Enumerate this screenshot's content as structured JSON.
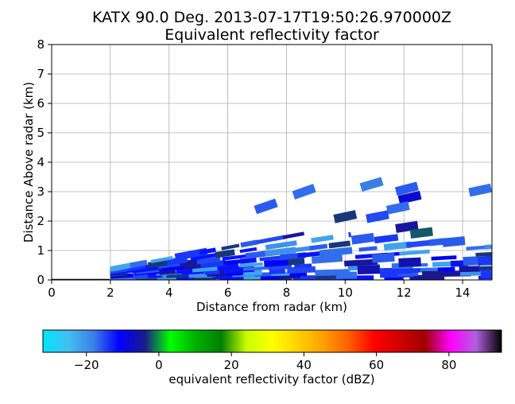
{
  "chart_data": {
    "type": "heatmap",
    "title_line1": "KATX 90.0 Deg. 2013-07-17T19:50:26.970000Z",
    "title_line2": "Equivalent reflectivity factor",
    "xlabel": "Distance from radar (km)",
    "ylabel": "Distance Above radar  (km)",
    "xlim": [
      0,
      15
    ],
    "ylim": [
      0,
      8
    ],
    "x_ticks": [
      "0",
      "2",
      "4",
      "6",
      "8",
      "10",
      "12",
      "14"
    ],
    "y_ticks": [
      "0",
      "1",
      "2",
      "3",
      "4",
      "5",
      "6",
      "7",
      "8"
    ],
    "grid": true,
    "colorbar": {
      "label": "equivalent reflectivity factor (dBZ)",
      "range": [
        -32,
        94.5
      ],
      "ticks": [
        "−20",
        "0",
        "20",
        "40",
        "60",
        "80"
      ],
      "tick_values": [
        -20,
        0,
        20,
        40,
        60,
        80
      ],
      "colors": [
        "#00e5ff",
        "#44bff0",
        "#3a7ee8",
        "#0000ff",
        "#1a1a8c",
        "#00ff00",
        "#00b000",
        "#008000",
        "#c8ff00",
        "#ffff00",
        "#ffd200",
        "#ffa000",
        "#ff6000",
        "#ff0000",
        "#d00000",
        "#a00000",
        "#ff00ff",
        "#b060e0",
        "#000000"
      ]
    },
    "segments": [
      {
        "r": 14.6,
        "z": 3.05,
        "dbz": -17
      },
      {
        "r": 10.9,
        "z": 3.25,
        "dbz": -18
      },
      {
        "r": 12.1,
        "z": 3.1,
        "dbz": -16
      },
      {
        "r": 12.2,
        "z": 2.8,
        "dbz": -8
      },
      {
        "r": 8.6,
        "z": 3.0,
        "dbz": -17
      },
      {
        "r": 7.3,
        "z": 2.5,
        "dbz": -16
      },
      {
        "r": 11.8,
        "z": 2.45,
        "dbz": -17
      },
      {
        "r": 11.1,
        "z": 2.15,
        "dbz": -15
      },
      {
        "r": 10.0,
        "z": 2.15,
        "dbz": -3
      },
      {
        "r": 12.1,
        "z": 1.8,
        "dbz": -5
      },
      {
        "r": 12.6,
        "z": 1.6,
        "dbz": -2
      },
      {
        "r": 10.6,
        "z": 1.4,
        "dbz": -16
      },
      {
        "r": 13.7,
        "z": 1.3,
        "dbz": -16
      },
      {
        "r": 14.4,
        "z": 0.65,
        "dbz": -16
      },
      {
        "r": 14.9,
        "z": 0.65,
        "dbz": -14
      },
      {
        "r": 15.0,
        "z": 0.2,
        "dbz": -14
      },
      {
        "r": 13.0,
        "z": 0.15,
        "dbz": -4
      },
      {
        "r": 12.2,
        "z": 0.6,
        "dbz": -6
      },
      {
        "r": 11.3,
        "z": 0.75,
        "dbz": -16
      },
      {
        "r": 10.8,
        "z": 0.35,
        "dbz": -6
      }
    ]
  }
}
